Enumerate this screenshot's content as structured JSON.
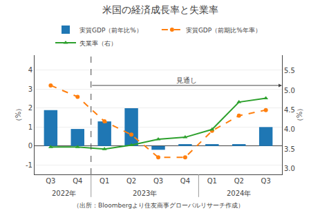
{
  "chart_data": {
    "type": "bar",
    "title": "米国の経済成長率と失業率",
    "source": "（出所：Bloombergより住友商事グローバルリサーチ作成）",
    "categories": [
      "Q3",
      "Q4",
      "Q1",
      "Q2",
      "Q3",
      "Q4",
      "Q1",
      "Q2",
      "Q3"
    ],
    "series": [
      {
        "name": "実質GDP（前年比%）",
        "type": "bar",
        "values": [
          1.9,
          0.9,
          1.3,
          2.0,
          -0.2,
          0.1,
          0.1,
          0.1,
          1.0
        ]
      },
      {
        "name": "実質GDP（前期比%年率）",
        "type": "line",
        "line_style": "dashed",
        "marker": "circle",
        "values": [
          3.2,
          2.6,
          1.3,
          0.6,
          -0.6,
          -0.6,
          0.8,
          1.6,
          1.9
        ]
      },
      {
        "name": "失業率（右）",
        "type": "line",
        "line_style": "solid",
        "marker": "triangle-up",
        "axis": "y2",
        "values": [
          3.55,
          3.55,
          3.5,
          3.6,
          3.75,
          3.8,
          4.0,
          4.7,
          4.8
        ]
      }
    ],
    "ylabel": "（%）",
    "y2label": "（%）",
    "ylim": [
      -1.5,
      4.8
    ],
    "yticks": [
      -1,
      0,
      1,
      2,
      3,
      4
    ],
    "y2lim": [
      2.85,
      5.9
    ],
    "y2ticks": [
      {
        "value": 3.0,
        "label": "3.0"
      },
      3.5,
      {
        "value": 4.0,
        "label": "4.0"
      },
      4.5,
      {
        "value": 5.0,
        "label": "5.0"
      },
      5.5
    ],
    "grid": true,
    "legend": "top",
    "forecast": {
      "label": "見通し",
      "start": 1.5,
      "y": 3.2
    },
    "year_groups": [
      {
        "label": "2022年",
        "start": 0,
        "end": 1
      },
      {
        "label": "2023年",
        "start": 2,
        "end": 5
      },
      {
        "label": "2024年",
        "start": 6,
        "end": 8
      }
    ]
  }
}
